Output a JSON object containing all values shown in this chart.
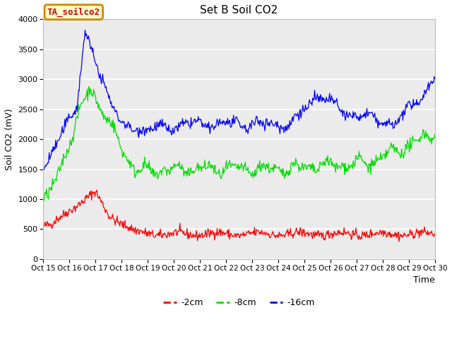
{
  "title": "Set B Soil CO2",
  "ylabel": "Soil CO2 (mV)",
  "xlabel": "Time",
  "xlim": [
    0,
    15
  ],
  "ylim": [
    0,
    4000
  ],
  "yticks": [
    0,
    500,
    1000,
    1500,
    2000,
    2500,
    3000,
    3500,
    4000
  ],
  "xtick_labels": [
    "Oct 15",
    "Oct 16",
    "Oct 17",
    "Oct 18",
    "Oct 19",
    "Oct 20",
    "Oct 21",
    "Oct 22",
    "Oct 23",
    "Oct 24",
    "Oct 25",
    "Oct 26",
    "Oct 27",
    "Oct 28",
    "Oct 29",
    "Oct 30"
  ],
  "bg_color": "#ebebeb",
  "fig_color": "#ffffff",
  "legend_label_box": "TA_soilco2",
  "legend_box_bg": "#ffffcc",
  "legend_box_border": "#cc8800",
  "line_red": "#ff0000",
  "line_green": "#00dd00",
  "line_blue": "#0000ff",
  "legend_items": [
    "-2cm",
    "-8cm",
    "-16cm"
  ]
}
